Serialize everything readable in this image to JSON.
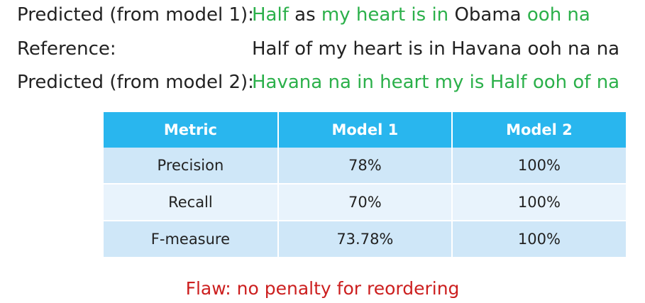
{
  "lines": {
    "predicted1": {
      "label": "Predicted (from model 1):",
      "tokens": [
        {
          "text": "Half",
          "matched": true
        },
        {
          "text": "as",
          "matched": false
        },
        {
          "text": "my heart is in",
          "matched": true
        },
        {
          "text": "Obama",
          "matched": false
        },
        {
          "text": "ooh na",
          "matched": true
        }
      ]
    },
    "reference": {
      "label": "Reference:",
      "text": "Half of my heart is in Havana ooh na na"
    },
    "predicted2": {
      "label": "Predicted (from model 2):",
      "text": "Havana na in heart my is Half ooh of na"
    }
  },
  "table": {
    "headers": [
      "Metric",
      "Model 1",
      "Model 2"
    ],
    "rows": [
      [
        "Precision",
        "78%",
        "100%"
      ],
      [
        "Recall",
        "70%",
        "100%"
      ],
      [
        "F-measure",
        "73.78%",
        "100%"
      ]
    ]
  },
  "footer": {
    "text": "Flaw: no penalty for reordering"
  },
  "colors": {
    "matched": "#2bb04a",
    "header_bg": "#29b6ee",
    "row_odd": "#cfe7f8",
    "row_even": "#e8f3fc",
    "flaw": "#cc1f1f"
  }
}
